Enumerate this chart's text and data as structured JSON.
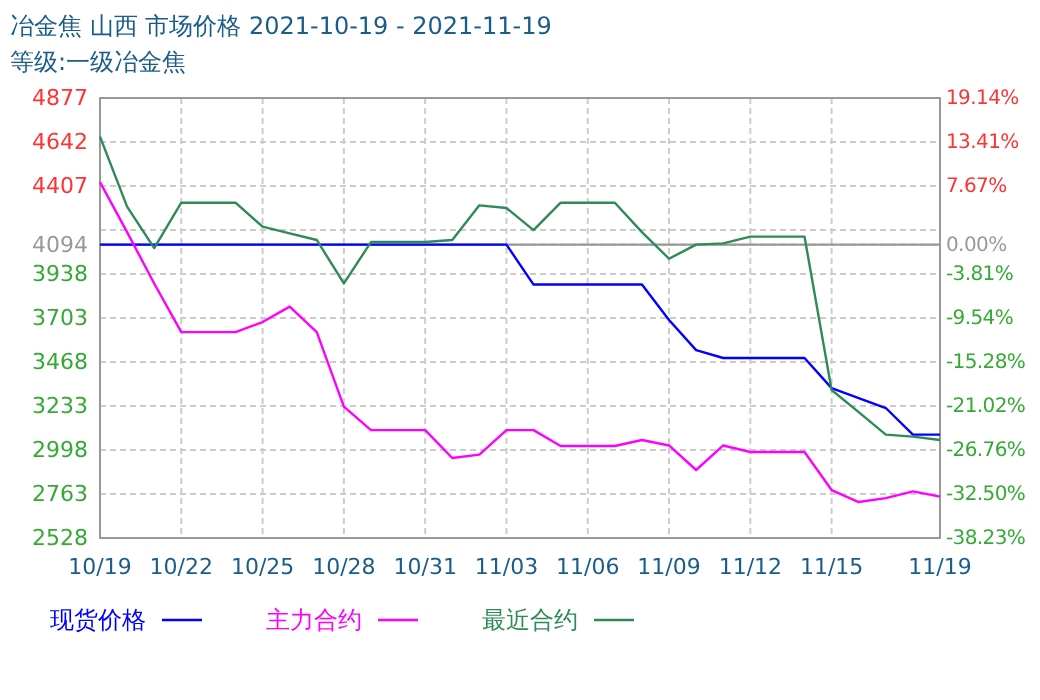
{
  "chart_data": {
    "type": "line",
    "title": "冶金焦 山西 市场价格 2021-10-19 - 2021-11-19",
    "subtitle": "等级:一级冶金焦",
    "x": [
      "2021-10-19",
      "2021-10-20",
      "2021-10-21",
      "2021-10-22",
      "2021-10-23",
      "2021-10-24",
      "2021-10-25",
      "2021-10-26",
      "2021-10-27",
      "2021-10-28",
      "2021-10-29",
      "2021-10-30",
      "2021-10-31",
      "2021-11-01",
      "2021-11-02",
      "2021-11-03",
      "2021-11-04",
      "2021-11-05",
      "2021-11-06",
      "2021-11-07",
      "2021-11-08",
      "2021-11-09",
      "2021-11-10",
      "2021-11-11",
      "2021-11-12",
      "2021-11-13",
      "2021-11-14",
      "2021-11-15",
      "2021-11-16",
      "2021-11-17",
      "2021-11-18",
      "2021-11-19"
    ],
    "series": [
      {
        "name": "现货价格",
        "color": "#0000ff",
        "values": [
          4094,
          4094,
          4094,
          4094,
          4094,
          4094,
          4094,
          4094,
          4094,
          4094,
          4094,
          4094,
          4094,
          4094,
          4094,
          4094,
          3881,
          3881,
          3881,
          3881,
          3881,
          3692,
          3531,
          3489,
          3489,
          3489,
          3489,
          3328,
          3275,
          3222,
          3080,
          3080
        ]
      },
      {
        "name": "主力合约",
        "color": "#ff00ff",
        "values": [
          4428,
          4161,
          3887,
          3627,
          3627,
          3627,
          3681,
          3763,
          3627,
          3229,
          3104,
          3104,
          3104,
          2955,
          2973,
          3104,
          3104,
          3019,
          3019,
          3019,
          3051,
          3022,
          2891,
          3022,
          2987,
          2987,
          2987,
          2784,
          2720,
          2741,
          2777,
          2749
        ]
      },
      {
        "name": "最近合约",
        "color": "#2e8b57",
        "values": [
          4671,
          4297,
          4076,
          4318,
          4318,
          4318,
          4190,
          4154,
          4119,
          3887,
          4108,
          4108,
          4108,
          4119,
          4304,
          4290,
          4172,
          4318,
          4318,
          4318,
          4161,
          4019,
          4094,
          4101,
          4137,
          4137,
          4137,
          3318,
          3200,
          3080,
          3069,
          3051
        ]
      }
    ],
    "xlim": [
      "2021-10-19",
      "2021-11-19"
    ],
    "xticks": [
      {
        "value": "2021-10-19",
        "label": "10/19"
      },
      {
        "value": "2021-10-22",
        "label": "10/22"
      },
      {
        "value": "2021-10-25",
        "label": "10/25"
      },
      {
        "value": "2021-10-28",
        "label": "10/28"
      },
      {
        "value": "2021-10-31",
        "label": "10/31"
      },
      {
        "value": "2021-11-03",
        "label": "11/03"
      },
      {
        "value": "2021-11-06",
        "label": "11/06"
      },
      {
        "value": "2021-11-09",
        "label": "11/09"
      },
      {
        "value": "2021-11-12",
        "label": "11/12"
      },
      {
        "value": "2021-11-15",
        "label": "11/15"
      },
      {
        "value": "2021-11-19",
        "label": "11/19"
      }
    ],
    "ylim": [
      2528,
      4877
    ],
    "yticks": [
      4877,
      4642,
      4407,
      {
        "value": 4172,
        "label": null
      },
      4094,
      3938,
      3703,
      3468,
      3233,
      2998,
      2763,
      2528
    ],
    "y2lim": [
      -38.23,
      19.14
    ],
    "y2ticks": [
      {
        "value": 19.14,
        "label": "19.14%"
      },
      {
        "value": 13.41,
        "label": "13.41%"
      },
      {
        "value": 7.67,
        "label": "7.67%"
      },
      {
        "value": 0,
        "label": "0.00%"
      },
      {
        "value": -3.81,
        "label": "-3.81%"
      },
      {
        "value": -9.54,
        "label": "-9.54%"
      },
      {
        "value": -15.28,
        "label": "-15.28%"
      },
      {
        "value": -21.02,
        "label": "-21.02%"
      },
      {
        "value": -26.76,
        "label": "-26.76%"
      },
      {
        "value": -32.5,
        "label": "-32.50%"
      },
      {
        "value": -38.23,
        "label": "-38.23%"
      }
    ],
    "ref_lines": [
      {
        "axis": "y",
        "value": 4094,
        "color": "#999999"
      }
    ],
    "grid": true,
    "legend": "bottom",
    "marker": "none",
    "line_style": "solid"
  }
}
